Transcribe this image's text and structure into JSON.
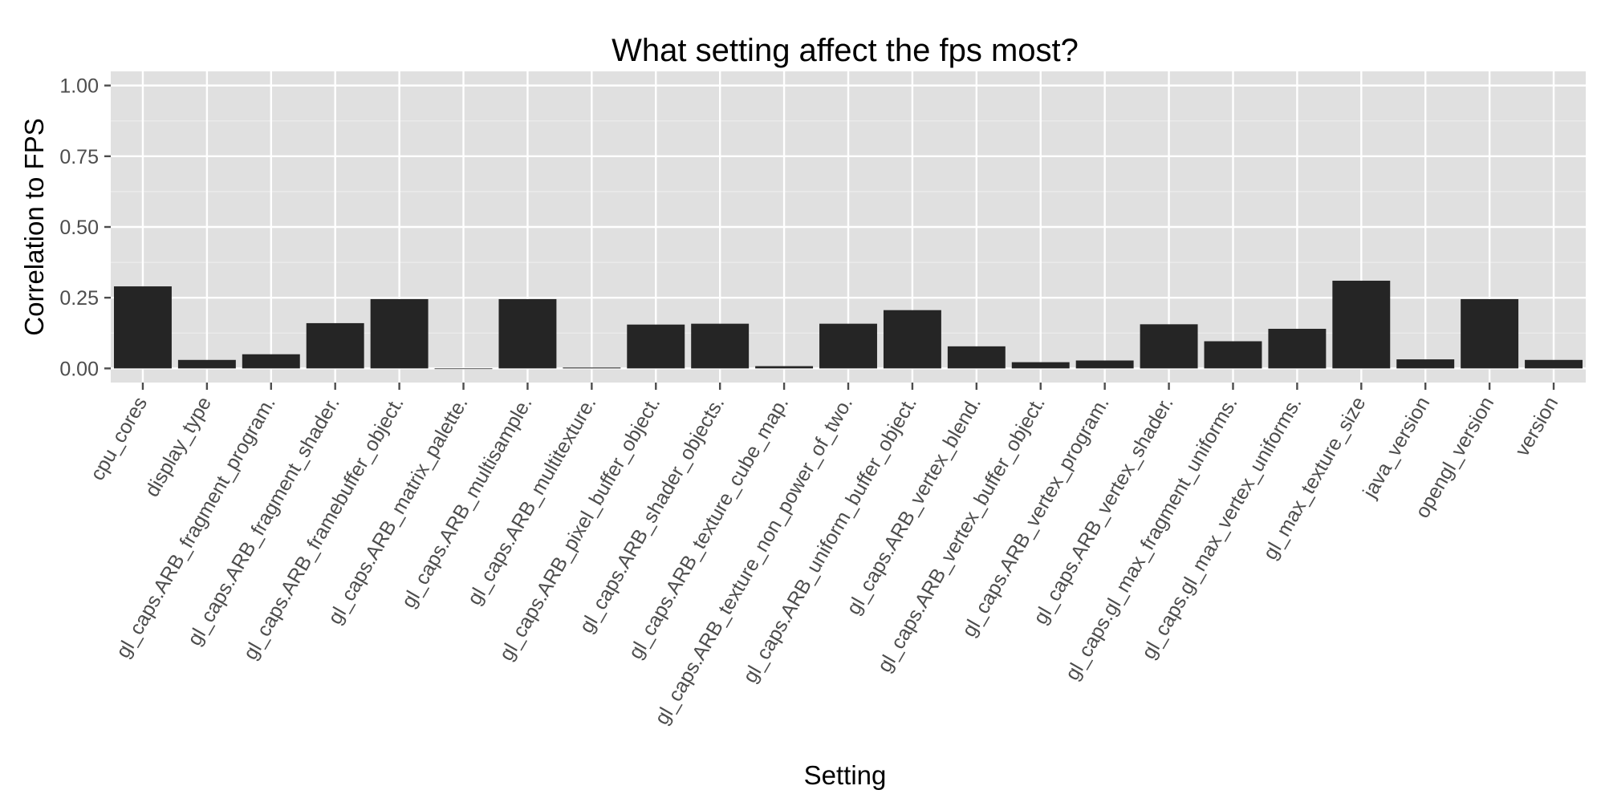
{
  "chart_data": {
    "type": "bar",
    "title": "What setting affect the fps most?",
    "xlabel": "Setting",
    "ylabel": "Correlation to FPS",
    "ylim": [
      -0.05,
      1.05
    ],
    "yticks": [
      "0.00",
      "0.25",
      "0.50",
      "0.75",
      "1.00"
    ],
    "grid": true,
    "legend": "none",
    "colors": {
      "panel": "#e0e0e0",
      "grid_major": "#ffffff",
      "grid_minor": "#ececec",
      "bar": "#252525",
      "tick_text": "#4d4d4d"
    },
    "categories": [
      "cpu_cores",
      "display_type",
      "gl_caps.ARB_fragment_program.",
      "gl_caps.ARB_fragment_shader.",
      "gl_caps.ARB_framebuffer_object.",
      "gl_caps.ARB_matrix_palette.",
      "gl_caps.ARB_multisample.",
      "gl_caps.ARB_multitexture.",
      "gl_caps.ARB_pixel_buffer_object.",
      "gl_caps.ARB_shader_objects.",
      "gl_caps.ARB_texture_cube_map.",
      "gl_caps.ARB_texture_non_power_of_two.",
      "gl_caps.ARB_uniform_buffer_object.",
      "gl_caps.ARB_vertex_blend.",
      "gl_caps.ARB_vertex_buffer_object.",
      "gl_caps.ARB_vertex_program.",
      "gl_caps.ARB_vertex_shader.",
      "gl_caps.gl_max_fragment_uniforms.",
      "gl_caps.gl_max_vertex_uniforms.",
      "gl_max_texture_size",
      "java_version",
      "opengl_version",
      "version"
    ],
    "values": [
      0.29,
      0.03,
      0.05,
      0.16,
      0.245,
      0.0,
      0.245,
      0.003,
      0.155,
      0.158,
      0.008,
      0.158,
      0.206,
      0.078,
      0.022,
      0.028,
      0.156,
      0.096,
      0.14,
      0.31,
      0.032,
      0.245,
      0.03
    ]
  }
}
